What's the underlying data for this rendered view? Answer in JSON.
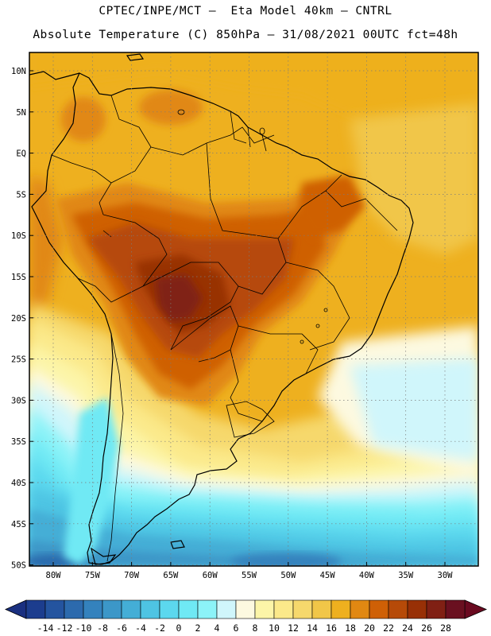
{
  "header": {
    "line1": "CPTEC/INPE/MCT –  Eta Model 40km – CNTRL",
    "line2": "Absolute Temperature (C) 850hPa – 31/08/2021 00UTC fct=48h"
  },
  "map": {
    "lat_labels": [
      "10N",
      "5N",
      "EQ",
      "5S",
      "10S",
      "15S",
      "20S",
      "25S",
      "30S",
      "35S",
      "40S",
      "45S",
      "50S"
    ],
    "lon_labels": [
      "80W",
      "75W",
      "70W",
      "65W",
      "60W",
      "55W",
      "50W",
      "45W",
      "40W",
      "35W",
      "30W"
    ]
  },
  "colorbar": {
    "labels": [
      "-14",
      "-12",
      "-10",
      "-8",
      "-6",
      "-4",
      "-2",
      "0",
      "2",
      "4",
      "6",
      "8",
      "10",
      "12",
      "14",
      "16",
      "18",
      "20",
      "22",
      "24",
      "26",
      "28"
    ],
    "colors": [
      "#1c3d8e",
      "#24549f",
      "#2c6aad",
      "#3482bd",
      "#3c97c8",
      "#44aed6",
      "#4ec4e3",
      "#5cd8ee",
      "#6fe9f4",
      "#8cf3f8",
      "#d0f6fb",
      "#fdf9e0",
      "#fcf5a8",
      "#fbe98a",
      "#f6d86c",
      "#f1c648",
      "#eeb01f",
      "#e18812",
      "#cf6006",
      "#b64a08",
      "#983006",
      "#802014",
      "#6a1020"
    ],
    "under_color": "#1a3080",
    "over_color": "#6a0a20"
  }
}
